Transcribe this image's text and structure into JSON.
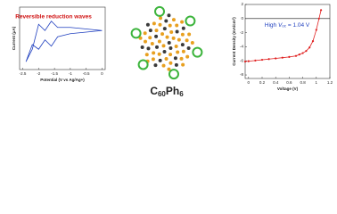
{
  "chart_data": [
    {
      "type": "line",
      "annotation": "Reversible reduction waves",
      "xlabel": "Potential (V vs Ag/Ag+)",
      "ylabel": "Current (μA)",
      "color": "#1f3fbf",
      "x": [
        0,
        -0.5,
        -1.0,
        -1.4,
        -1.6,
        -1.8,
        -2.0,
        -2.2,
        -2.4,
        -2.2,
        -2.0,
        -1.8,
        -1.6,
        -1.4,
        -1.0,
        -0.5,
        0
      ],
      "values": [
        0,
        -1,
        -2,
        -4,
        -10,
        -6,
        -12,
        -9,
        -20,
        -12,
        4,
        0,
        6,
        2,
        2,
        1,
        0
      ],
      "xlim": [
        -2.6,
        0.1
      ],
      "xticks": [
        -2.5,
        -2.0,
        -1.5,
        -1.0,
        -0.5,
        0.0
      ],
      "ylim": [
        -25,
        15
      ]
    },
    {
      "type": "line",
      "annotation": [
        "High ",
        "V",
        "oc",
        " = 1.04 V"
      ],
      "xlabel": "Voltage (V)",
      "ylabel": "Current Density (mA/cm²)",
      "color": "#e02020",
      "x": [
        -0.05,
        0,
        0.1,
        0.2,
        0.3,
        0.4,
        0.5,
        0.6,
        0.7,
        0.75,
        0.8,
        0.85,
        0.9,
        0.95,
        1.0,
        1.04,
        1.07
      ],
      "values": [
        -6.1,
        -6.05,
        -5.95,
        -5.85,
        -5.75,
        -5.65,
        -5.55,
        -5.45,
        -5.3,
        -5.1,
        -4.9,
        -4.6,
        -4.1,
        -3.2,
        -1.6,
        0,
        1.2
      ],
      "xlim": [
        -0.05,
        1.2
      ],
      "xticks": [
        0.0,
        0.2,
        0.4,
        0.6,
        0.8,
        1.0,
        1.2
      ],
      "ylim": [
        -8.5,
        2
      ],
      "yticks": [
        -8,
        -6,
        -4,
        -2,
        0,
        2
      ]
    }
  ],
  "molecule": {
    "label": [
      "C",
      "60",
      "Ph",
      "6"
    ]
  }
}
